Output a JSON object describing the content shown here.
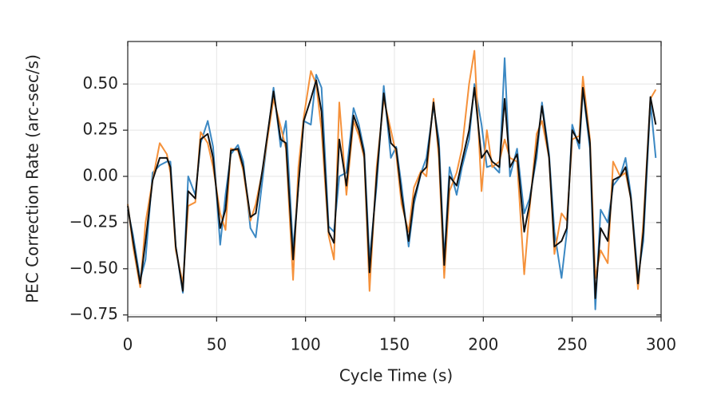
{
  "chart_data": {
    "type": "line",
    "x_label": "Cycle Time (s)",
    "y_label": "PEC Correction Rate (arc-sec/s)",
    "x": [
      0,
      3,
      7,
      10,
      14,
      18,
      22,
      24,
      27,
      31,
      34,
      38,
      41,
      45,
      48,
      52,
      55,
      58,
      62,
      65,
      69,
      72,
      76,
      82,
      86,
      89,
      93,
      96,
      99,
      103,
      106,
      109,
      113,
      116,
      119,
      123,
      127,
      130,
      133,
      136,
      140,
      144,
      148,
      151,
      154,
      158,
      161,
      165,
      168,
      172,
      175,
      178,
      181,
      185,
      188,
      192,
      195,
      199,
      202,
      205,
      209,
      212,
      215,
      219,
      223,
      226,
      230,
      233,
      237,
      240,
      244,
      247,
      250,
      254,
      256,
      260,
      263,
      266,
      270,
      273,
      277,
      280,
      283,
      287,
      290,
      294,
      297
    ],
    "series": [
      {
        "name": null,
        "color": "#3b88c3",
        "values": [
          -0.18,
          -0.32,
          -0.56,
          -0.45,
          0.02,
          0.06,
          0.08,
          0.08,
          -0.38,
          -0.63,
          0.0,
          -0.1,
          0.18,
          0.3,
          0.16,
          -0.37,
          -0.1,
          0.12,
          0.17,
          0.08,
          -0.28,
          -0.33,
          0.0,
          0.48,
          0.16,
          0.3,
          -0.4,
          -0.05,
          0.3,
          0.28,
          0.55,
          0.48,
          -0.27,
          -0.3,
          0.0,
          0.02,
          0.37,
          0.28,
          0.14,
          -0.45,
          -0.05,
          0.49,
          0.1,
          0.16,
          -0.05,
          -0.38,
          -0.15,
          0.02,
          0.1,
          0.38,
          0.2,
          -0.45,
          0.05,
          -0.1,
          0.05,
          0.2,
          0.5,
          0.28,
          0.05,
          0.06,
          0.02,
          0.64,
          0.0,
          0.15,
          -0.2,
          -0.12,
          0.1,
          0.4,
          0.12,
          -0.3,
          -0.55,
          -0.3,
          0.28,
          0.15,
          0.47,
          0.15,
          -0.72,
          -0.18,
          -0.25,
          -0.05,
          0.0,
          0.1,
          -0.1,
          -0.55,
          -0.35,
          0.4,
          0.1
        ]
      },
      {
        "name": null,
        "color": "#f5913a",
        "values": [
          -0.15,
          -0.38,
          -0.6,
          -0.25,
          -0.02,
          0.18,
          0.12,
          0.02,
          -0.4,
          -0.58,
          -0.16,
          -0.14,
          0.24,
          0.18,
          0.05,
          -0.2,
          -0.29,
          0.15,
          0.14,
          0.03,
          -0.24,
          -0.15,
          0.04,
          0.42,
          0.27,
          0.15,
          -0.56,
          0.05,
          0.32,
          0.57,
          0.5,
          0.25,
          -0.32,
          -0.45,
          0.4,
          -0.1,
          0.3,
          0.22,
          0.1,
          -0.62,
          0.05,
          0.42,
          0.25,
          0.12,
          -0.15,
          -0.3,
          -0.06,
          0.03,
          0.0,
          0.42,
          0.1,
          -0.55,
          -0.08,
          0.02,
          0.15,
          0.5,
          0.68,
          -0.08,
          0.25,
          0.05,
          0.08,
          0.2,
          0.1,
          0.08,
          -0.53,
          -0.18,
          0.23,
          0.3,
          0.1,
          -0.42,
          -0.2,
          -0.24,
          0.2,
          0.22,
          0.54,
          0.2,
          -0.55,
          -0.4,
          -0.47,
          0.08,
          0.0,
          0.02,
          -0.12,
          -0.61,
          -0.25,
          0.42,
          0.47
        ]
      },
      {
        "name": null,
        "color": "#111111",
        "values": [
          -0.16,
          -0.35,
          -0.58,
          -0.35,
          -0.02,
          0.1,
          0.1,
          0.05,
          -0.38,
          -0.62,
          -0.08,
          -0.12,
          0.2,
          0.23,
          0.1,
          -0.28,
          -0.18,
          0.14,
          0.15,
          0.05,
          -0.22,
          -0.2,
          0.05,
          0.46,
          0.2,
          0.18,
          -0.45,
          -0.05,
          0.3,
          0.42,
          0.52,
          0.35,
          -0.3,
          -0.36,
          0.2,
          -0.05,
          0.33,
          0.25,
          0.12,
          -0.52,
          0.0,
          0.45,
          0.18,
          0.15,
          -0.1,
          -0.35,
          -0.12,
          0.02,
          0.05,
          0.4,
          0.15,
          -0.48,
          0.0,
          -0.05,
          0.08,
          0.25,
          0.48,
          0.1,
          0.14,
          0.08,
          0.05,
          0.42,
          0.05,
          0.12,
          -0.3,
          -0.15,
          0.15,
          0.38,
          0.1,
          -0.38,
          -0.35,
          -0.28,
          0.25,
          0.18,
          0.48,
          0.18,
          -0.66,
          -0.28,
          -0.35,
          -0.02,
          0.0,
          0.05,
          -0.12,
          -0.58,
          -0.3,
          0.43,
          0.28
        ]
      }
    ],
    "xlim": [
      0,
      300
    ],
    "xticks": [
      0,
      50,
      100,
      150,
      200,
      250,
      300
    ],
    "ylim": [
      -0.76,
      0.73
    ],
    "yticks": [
      {
        "value": -0.75,
        "label": "−0.75"
      },
      {
        "value": -0.5,
        "label": "−0.50"
      },
      {
        "value": -0.25,
        "label": "−0.25"
      },
      {
        "value": 0,
        "label": "0.00"
      },
      {
        "value": 0.25,
        "label": "0.25"
      },
      {
        "value": 0.5,
        "label": "0.50"
      }
    ],
    "grid": true
  }
}
